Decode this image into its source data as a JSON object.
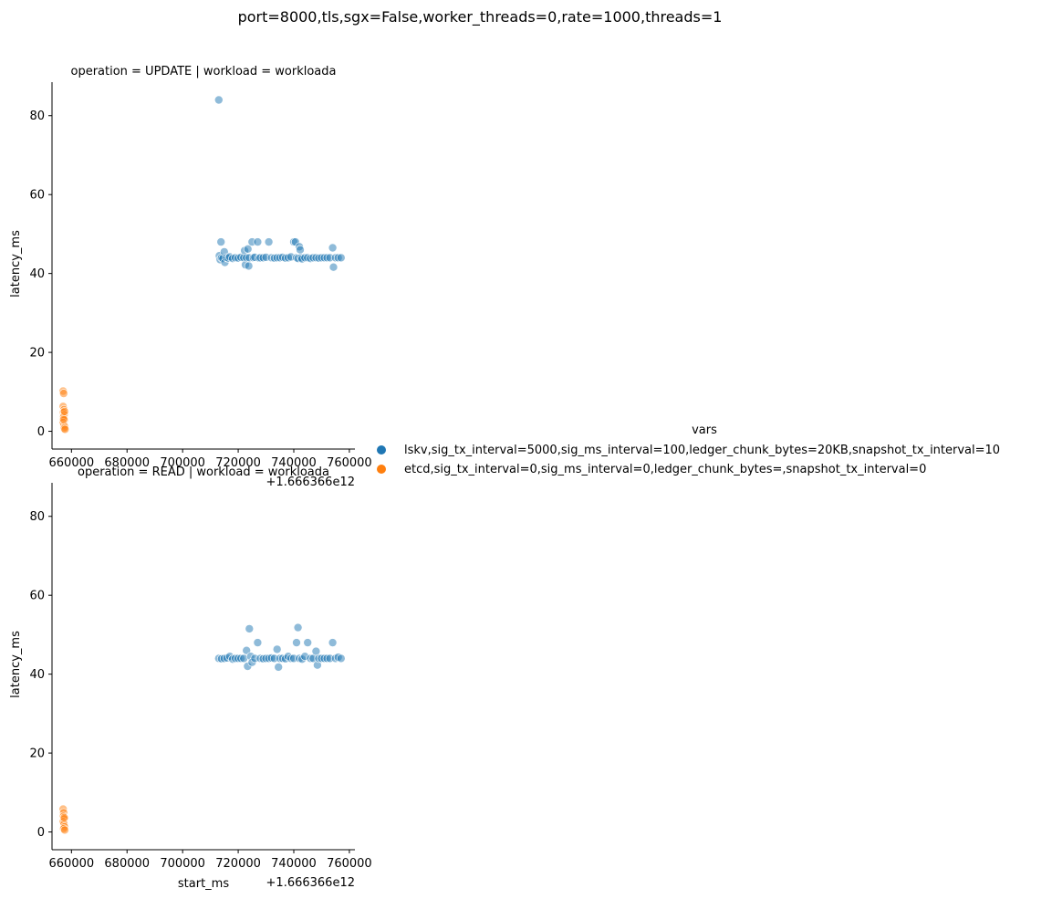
{
  "chart_data": {
    "type": "scatter",
    "suptitle": "port=8000,tls,sgx=False,worker_threads=0,rate=1000,threads=1",
    "x_offset_label": "+1.666366e12",
    "xlabel": "start_ms",
    "ylabel": "latency_ms",
    "xlim": [
      653000,
      762000
    ],
    "ylim": [
      -4.5,
      88.5
    ],
    "xticks": [
      660000,
      680000,
      700000,
      720000,
      740000,
      760000
    ],
    "yticks": [
      0,
      20,
      40,
      60,
      80
    ],
    "legend": {
      "title": "vars",
      "placement": "center-right",
      "entries": [
        {
          "label": "lskv,sig_tx_interval=5000,sig_ms_interval=100,ledger_chunk_bytes=20KB,snapshot_tx_interval=10",
          "color": "#1f77b4"
        },
        {
          "label": "etcd,sig_tx_interval=0,sig_ms_interval=0,ledger_chunk_bytes=,snapshot_tx_interval=0",
          "color": "#ff7f0e"
        }
      ]
    },
    "panels": [
      {
        "title": "operation = UPDATE | workload = workloada",
        "series": [
          {
            "name": "lskv,sig_tx_interval=5000,sig_ms_interval=100,ledger_chunk_bytes=20KB,snapshot_tx_interval=10",
            "color": "#1f77b4",
            "points": [
              [
                713000,
                84.0
              ],
              [
                713200,
                44.5
              ],
              [
                713500,
                43.5
              ],
              [
                713800,
                48.0
              ],
              [
                714000,
                44.0
              ],
              [
                714500,
                43.8
              ],
              [
                715000,
                45.5
              ],
              [
                715200,
                42.8
              ],
              [
                715800,
                44.0
              ],
              [
                716500,
                43.9
              ],
              [
                717000,
                44.2
              ],
              [
                718000,
                43.8
              ],
              [
                719000,
                44.0
              ],
              [
                720000,
                43.9
              ],
              [
                721000,
                44.1
              ],
              [
                722000,
                44.0
              ],
              [
                722300,
                45.8
              ],
              [
                722600,
                42.2
              ],
              [
                723000,
                44.0
              ],
              [
                723500,
                46.2
              ],
              [
                723800,
                41.9
              ],
              [
                724000,
                44.0
              ],
              [
                725000,
                48.0
              ],
              [
                725500,
                44.0
              ],
              [
                726000,
                44.1
              ],
              [
                727000,
                48.0
              ],
              [
                727500,
                43.9
              ],
              [
                728000,
                44.0
              ],
              [
                729000,
                44.0
              ],
              [
                730000,
                44.1
              ],
              [
                731000,
                48.0
              ],
              [
                732000,
                44.0
              ],
              [
                733000,
                43.9
              ],
              [
                734000,
                44.0
              ],
              [
                735000,
                44.0
              ],
              [
                736000,
                44.1
              ],
              [
                737000,
                43.9
              ],
              [
                738000,
                44.0
              ],
              [
                739000,
                44.2
              ],
              [
                740000,
                48.0
              ],
              [
                740600,
                48.0
              ],
              [
                741000,
                44.0
              ],
              [
                741500,
                43.8
              ],
              [
                742000,
                46.8
              ],
              [
                742300,
                46.0
              ],
              [
                742700,
                44.0
              ],
              [
                743000,
                43.7
              ],
              [
                744000,
                44.0
              ],
              [
                745000,
                44.0
              ],
              [
                746000,
                43.8
              ],
              [
                747000,
                44.0
              ],
              [
                748000,
                44.0
              ],
              [
                749000,
                43.9
              ],
              [
                750000,
                44.0
              ],
              [
                751000,
                44.0
              ],
              [
                752000,
                44.0
              ],
              [
                753000,
                44.0
              ],
              [
                754000,
                46.5
              ],
              [
                754300,
                41.6
              ],
              [
                755000,
                44.0
              ],
              [
                756000,
                44.0
              ],
              [
                757000,
                44.0
              ]
            ]
          },
          {
            "name": "etcd,sig_tx_interval=0,sig_ms_interval=0,ledger_chunk_bytes=,snapshot_tx_interval=0",
            "color": "#ff7f0e",
            "points": [
              [
                657000,
                10.2
              ],
              [
                657200,
                9.6
              ],
              [
                657000,
                6.3
              ],
              [
                657300,
                5.5
              ],
              [
                657100,
                4.8
              ],
              [
                657400,
                4.2
              ],
              [
                657200,
                3.6
              ],
              [
                657500,
                2.9
              ],
              [
                657000,
                2.2
              ],
              [
                657300,
                1.6
              ],
              [
                657600,
                1.1
              ],
              [
                657400,
                0.7
              ],
              [
                657700,
                0.5
              ],
              [
                657200,
                3.0
              ],
              [
                657500,
                5.0
              ]
            ]
          }
        ]
      },
      {
        "title": "operation = READ | workload = workloada",
        "series": [
          {
            "name": "lskv,sig_tx_interval=5000,sig_ms_interval=100,ledger_chunk_bytes=20KB,snapshot_tx_interval=10",
            "color": "#1f77b4",
            "points": [
              [
                713000,
                44.0
              ],
              [
                714000,
                43.9
              ],
              [
                715000,
                44.0
              ],
              [
                716000,
                44.1
              ],
              [
                717000,
                44.5
              ],
              [
                718000,
                43.8
              ],
              [
                719000,
                44.0
              ],
              [
                720000,
                44.0
              ],
              [
                721000,
                44.0
              ],
              [
                722000,
                44.0
              ],
              [
                723000,
                46.0
              ],
              [
                723400,
                42.0
              ],
              [
                724000,
                51.5
              ],
              [
                724500,
                44.5
              ],
              [
                725000,
                43.0
              ],
              [
                726000,
                44.0
              ],
              [
                727000,
                48.0
              ],
              [
                728000,
                44.0
              ],
              [
                729000,
                43.9
              ],
              [
                730000,
                44.0
              ],
              [
                731000,
                44.0
              ],
              [
                732000,
                44.1
              ],
              [
                733000,
                44.0
              ],
              [
                734000,
                46.3
              ],
              [
                734500,
                41.8
              ],
              [
                735000,
                44.0
              ],
              [
                736000,
                44.0
              ],
              [
                737000,
                43.9
              ],
              [
                738000,
                44.5
              ],
              [
                739000,
                44.0
              ],
              [
                740000,
                44.0
              ],
              [
                741000,
                48.0
              ],
              [
                741500,
                51.8
              ],
              [
                742000,
                44.0
              ],
              [
                743000,
                43.8
              ],
              [
                744000,
                44.5
              ],
              [
                745000,
                48.0
              ],
              [
                746000,
                44.0
              ],
              [
                747000,
                44.0
              ],
              [
                748000,
                45.8
              ],
              [
                748500,
                42.3
              ],
              [
                749000,
                44.0
              ],
              [
                750000,
                44.0
              ],
              [
                751000,
                44.0
              ],
              [
                752000,
                44.0
              ],
              [
                753000,
                44.0
              ],
              [
                754000,
                48.0
              ],
              [
                755000,
                44.0
              ],
              [
                756000,
                44.3
              ],
              [
                757000,
                44.0
              ]
            ]
          },
          {
            "name": "etcd,sig_tx_interval=0,sig_ms_interval=0,ledger_chunk_bytes=,snapshot_tx_interval=0",
            "color": "#ff7f0e",
            "points": [
              [
                657000,
                5.8
              ],
              [
                657200,
                4.9
              ],
              [
                657100,
                4.0
              ],
              [
                657400,
                3.3
              ],
              [
                657000,
                2.6
              ],
              [
                657300,
                2.0
              ],
              [
                657500,
                1.3
              ],
              [
                657200,
                0.8
              ],
              [
                657600,
                0.5
              ],
              [
                657400,
                3.6
              ]
            ]
          }
        ]
      }
    ]
  }
}
